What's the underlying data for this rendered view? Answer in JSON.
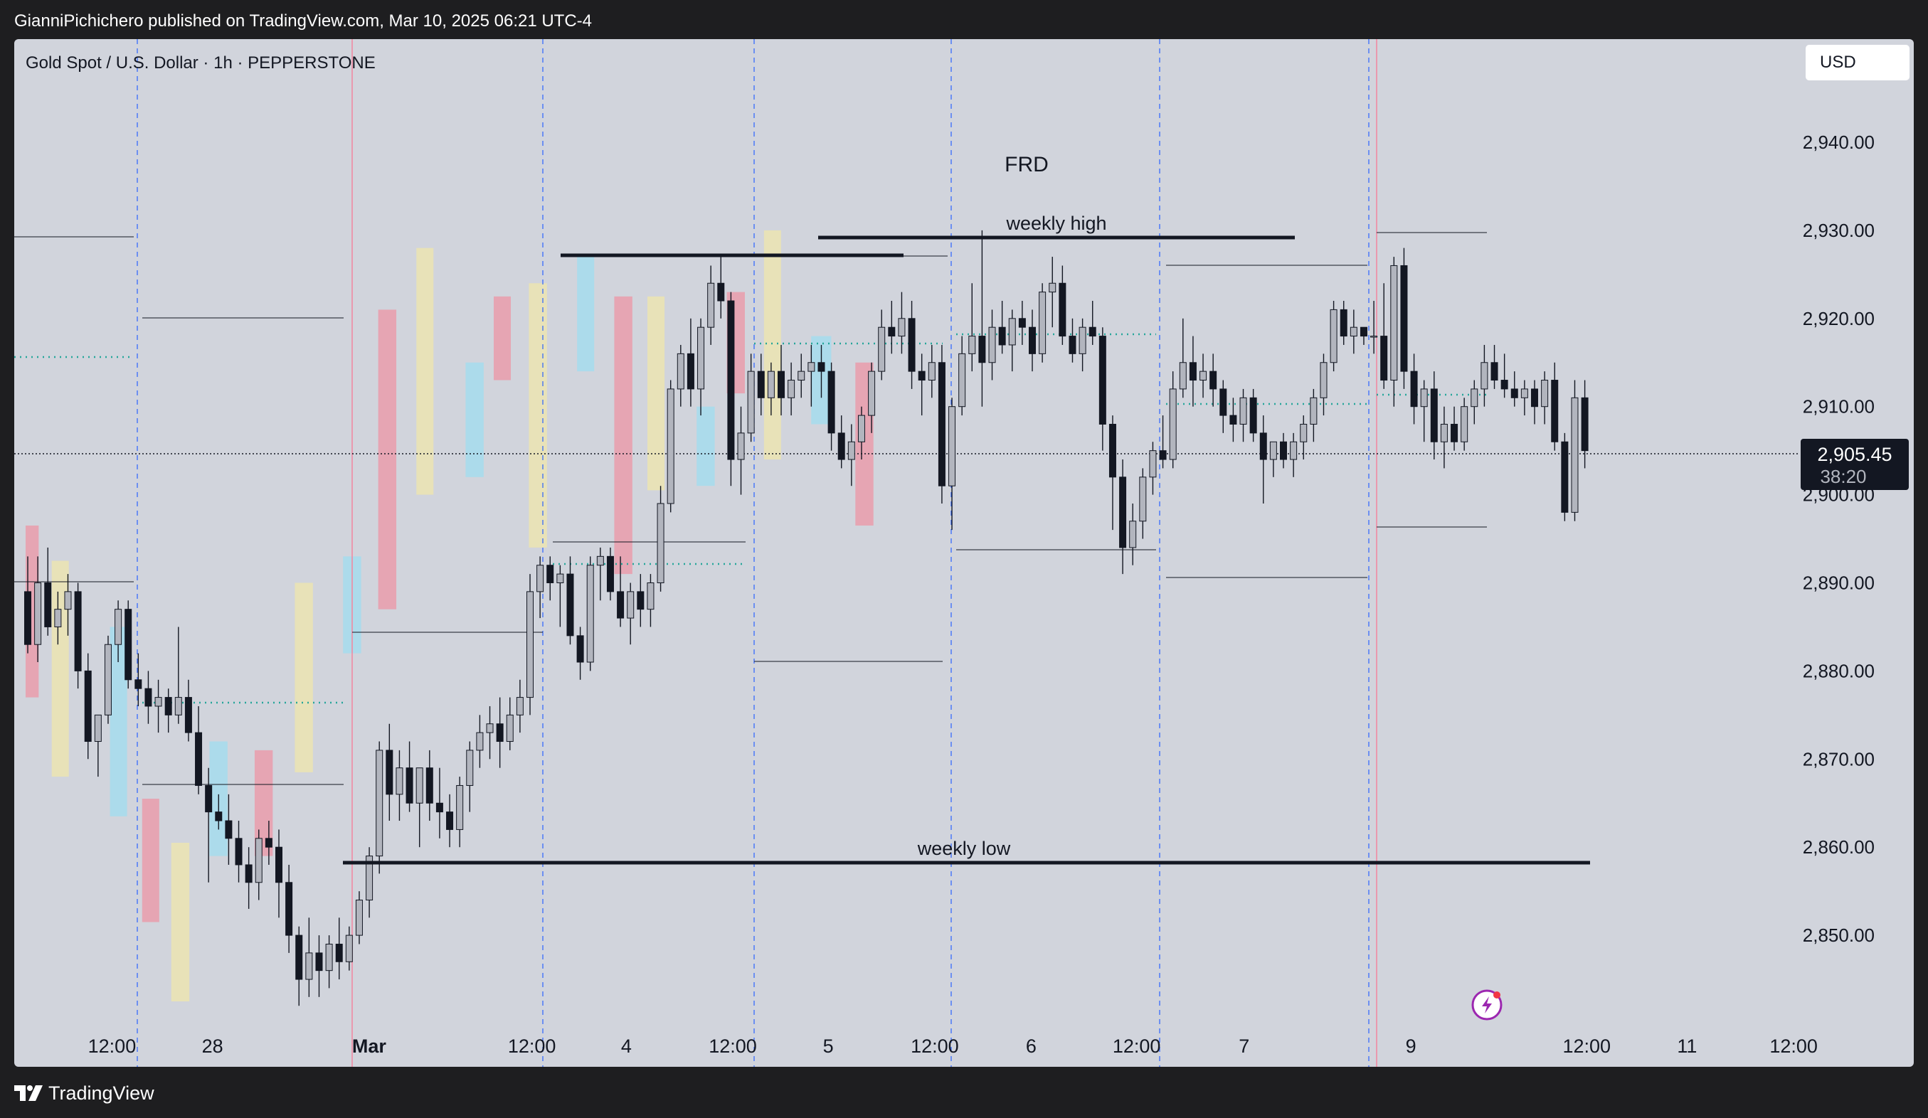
{
  "header": {
    "publish_text": "GianniPichichero published on TradingView.com, Mar 10, 2025 06:21 UTC-4"
  },
  "chart_header": {
    "symbol_title": "Gold Spot / U.S. Dollar · 1h · PEPPERSTONE",
    "currency_button": "USD"
  },
  "price_tag": {
    "price": "2,905.45",
    "countdown": "38:20"
  },
  "annotations": {
    "frd": "FRD",
    "weekly_high": "weekly high",
    "weekly_low": "weekly low"
  },
  "footer": {
    "brand": "TradingView"
  },
  "colors": {
    "chart_bg": "#d1d4dc",
    "candle_up": "#b2b5be",
    "candle_down": "#131722",
    "session_pink": "#e8a0ae",
    "session_cream": "#eae3b4",
    "session_blue": "#a7dcec",
    "day_separator": "#2962ff",
    "week_separator": "#f08aa2",
    "mid_dots": "#26a69a",
    "level_line": "#131722"
  },
  "chart_data": {
    "type": "candlestick",
    "title": "Gold Spot / U.S. Dollar · 1h · PEPPERSTONE",
    "ylim": [
      2842.5,
      2945.0
    ],
    "y_ticks": [
      2940,
      2930,
      2920,
      2910,
      2900,
      2890,
      2880,
      2870,
      2860,
      2850
    ],
    "y_tick_labels": [
      "2,940.00",
      "2,930.00",
      "2,920.00",
      "2,910.00",
      "2,900.00",
      "2,890.00",
      "2,880.00",
      "2,870.00",
      "2,860.00",
      "2,850.00"
    ],
    "x_range": [
      0,
      157
    ],
    "x_ticks": [
      {
        "i": 8.6,
        "label": "12:00",
        "bold": false
      },
      {
        "i": 18.6,
        "label": "28",
        "bold": false
      },
      {
        "i": 34.2,
        "label": "Mar",
        "bold": true
      },
      {
        "i": 50.4,
        "label": "12:00",
        "bold": false
      },
      {
        "i": 59.8,
        "label": "4",
        "bold": false
      },
      {
        "i": 70.4,
        "label": "12:00",
        "bold": false
      },
      {
        "i": 79.9,
        "label": "5",
        "bold": false
      },
      {
        "i": 90.5,
        "label": "12:00",
        "bold": false
      },
      {
        "i": 100.1,
        "label": "6",
        "bold": false
      },
      {
        "i": 110.6,
        "label": "12:00",
        "bold": false
      },
      {
        "i": 121.3,
        "label": "7",
        "bold": false
      },
      {
        "i": 137.9,
        "label": "9",
        "bold": false
      },
      {
        "i": 155.4,
        "label": "12:00",
        "bold": false
      },
      {
        "i": 165.4,
        "label": "11",
        "bold": false
      },
      {
        "i": 176.0,
        "label": "12:00",
        "bold": false
      }
    ],
    "last_price": 2905.45,
    "candles": [
      [
        2889,
        2893,
        2882,
        2883
      ],
      [
        2883,
        2893,
        2881,
        2890
      ],
      [
        2890,
        2894,
        2884,
        2885
      ],
      [
        2885,
        2889,
        2883,
        2887
      ],
      [
        2887,
        2891,
        2884,
        2889
      ],
      [
        2889,
        2890,
        2878,
        2880
      ],
      [
        2880,
        2882,
        2870,
        2872
      ],
      [
        2872,
        2875,
        2868,
        2875
      ],
      [
        2875,
        2884,
        2874,
        2883
      ],
      [
        2883,
        2888,
        2881,
        2887
      ],
      [
        2887,
        2888,
        2878,
        2879
      ],
      [
        2879,
        2882,
        2876,
        2878
      ],
      [
        2878,
        2880,
        2874,
        2876
      ],
      [
        2876,
        2879,
        2873,
        2877
      ],
      [
        2877,
        2878,
        2873,
        2875
      ],
      [
        2875,
        2885,
        2874,
        2877
      ],
      [
        2877,
        2879,
        2872,
        2873
      ],
      [
        2873,
        2876,
        2866,
        2867
      ],
      [
        2867,
        2869,
        2856,
        2864
      ],
      [
        2864,
        2866,
        2862,
        2863
      ],
      [
        2863,
        2866,
        2858,
        2861
      ],
      [
        2861,
        2863,
        2856,
        2858
      ],
      [
        2858,
        2860,
        2853,
        2856
      ],
      [
        2856,
        2862,
        2854,
        2861
      ],
      [
        2861,
        2863,
        2858,
        2860
      ],
      [
        2860,
        2862,
        2852,
        2856
      ],
      [
        2856,
        2858,
        2848,
        2850
      ],
      [
        2850,
        2851,
        2842,
        2845
      ],
      [
        2845,
        2852,
        2843,
        2848
      ],
      [
        2848,
        2850,
        2843,
        2846
      ],
      [
        2846,
        2850,
        2844,
        2849
      ],
      [
        2849,
        2852,
        2845,
        2847
      ],
      [
        2847,
        2851,
        2846,
        2850
      ],
      [
        2850,
        2855,
        2849,
        2854
      ],
      [
        2854,
        2860,
        2852,
        2859
      ],
      [
        2859,
        2872,
        2857,
        2871
      ],
      [
        2871,
        2874,
        2863,
        2866
      ],
      [
        2866,
        2871,
        2863,
        2869
      ],
      [
        2869,
        2872,
        2864,
        2865
      ],
      [
        2865,
        2869,
        2860,
        2869
      ],
      [
        2869,
        2871,
        2863,
        2865
      ],
      [
        2865,
        2869,
        2861,
        2864
      ],
      [
        2864,
        2866,
        2860,
        2862
      ],
      [
        2862,
        2868,
        2860,
        2867
      ],
      [
        2867,
        2872,
        2864,
        2871
      ],
      [
        2871,
        2875,
        2869,
        2873
      ],
      [
        2873,
        2876,
        2870,
        2874
      ],
      [
        2874,
        2877,
        2869,
        2872
      ],
      [
        2872,
        2877,
        2871,
        2875
      ],
      [
        2875,
        2879,
        2873,
        2877
      ],
      [
        2877,
        2891,
        2875,
        2889
      ],
      [
        2889,
        2893,
        2886,
        2892
      ],
      [
        2892,
        2893,
        2888,
        2890
      ],
      [
        2890,
        2892,
        2885,
        2891
      ],
      [
        2891,
        2893,
        2883,
        2884
      ],
      [
        2884,
        2885,
        2879,
        2881
      ],
      [
        2881,
        2893,
        2880,
        2892
      ],
      [
        2892,
        2894,
        2888,
        2893
      ],
      [
        2893,
        2894,
        2888,
        2889
      ],
      [
        2889,
        2893,
        2885,
        2886
      ],
      [
        2886,
        2890,
        2883,
        2889
      ],
      [
        2889,
        2891,
        2885,
        2887
      ],
      [
        2887,
        2891,
        2885,
        2890
      ],
      [
        2890,
        2901,
        2889,
        2899
      ],
      [
        2899,
        2913,
        2898,
        2912
      ],
      [
        2912,
        2917,
        2910,
        2916
      ],
      [
        2916,
        2920,
        2910,
        2912
      ],
      [
        2912,
        2920,
        2909,
        2919
      ],
      [
        2919,
        2926,
        2917,
        2924
      ],
      [
        2924,
        2927,
        2920,
        2922
      ],
      [
        2922,
        2923,
        2901,
        2904
      ],
      [
        2904,
        2910,
        2900,
        2907
      ],
      [
        2907,
        2916,
        2906,
        2914
      ],
      [
        2914,
        2916,
        2909,
        2911
      ],
      [
        2911,
        2915,
        2909,
        2914
      ],
      [
        2914,
        2917,
        2909,
        2911
      ],
      [
        2911,
        2915,
        2909,
        2913
      ],
      [
        2913,
        2916,
        2911,
        2914
      ],
      [
        2914,
        2917,
        2910,
        2915
      ],
      [
        2915,
        2917,
        2911,
        2914
      ],
      [
        2914,
        2915,
        2905,
        2907
      ],
      [
        2907,
        2909,
        2903,
        2904
      ],
      [
        2904,
        2908,
        2901,
        2906
      ],
      [
        2906,
        2910,
        2904,
        2909
      ],
      [
        2909,
        2915,
        2907,
        2914
      ],
      [
        2914,
        2921,
        2913,
        2919
      ],
      [
        2919,
        2922,
        2916,
        2918
      ],
      [
        2918,
        2923,
        2916,
        2920
      ],
      [
        2920,
        2922,
        2912,
        2914
      ],
      [
        2914,
        2916,
        2909,
        2913
      ],
      [
        2913,
        2917,
        2911,
        2915
      ],
      [
        2915,
        2917,
        2899,
        2901
      ],
      [
        2901,
        2911,
        2896,
        2910
      ],
      [
        2910,
        2918,
        2909,
        2916
      ],
      [
        2916,
        2924,
        2914,
        2918
      ],
      [
        2918,
        2930,
        2910,
        2915
      ],
      [
        2915,
        2921,
        2913,
        2919
      ],
      [
        2919,
        2922,
        2916,
        2917
      ],
      [
        2917,
        2921,
        2914,
        2920
      ],
      [
        2920,
        2922,
        2917,
        2919
      ],
      [
        2919,
        2921,
        2914,
        2916
      ],
      [
        2916,
        2924,
        2915,
        2923
      ],
      [
        2923,
        2927,
        2919,
        2924
      ],
      [
        2924,
        2926,
        2917,
        2918
      ],
      [
        2918,
        2920,
        2915,
        2916
      ],
      [
        2916,
        2920,
        2914,
        2919
      ],
      [
        2919,
        2922,
        2917,
        2918
      ],
      [
        2918,
        2919,
        2905,
        2908
      ],
      [
        2908,
        2909,
        2896,
        2902
      ],
      [
        2902,
        2904,
        2891,
        2894
      ],
      [
        2894,
        2899,
        2892,
        2897
      ],
      [
        2897,
        2903,
        2895,
        2902
      ],
      [
        2902,
        2906,
        2900,
        2905
      ],
      [
        2905,
        2909,
        2903,
        2904
      ],
      [
        2904,
        2914,
        2903,
        2912
      ],
      [
        2912,
        2920,
        2911,
        2915
      ],
      [
        2915,
        2918,
        2910,
        2913
      ],
      [
        2913,
        2916,
        2911,
        2914
      ],
      [
        2914,
        2916,
        2910,
        2912
      ],
      [
        2912,
        2913,
        2907,
        2909
      ],
      [
        2909,
        2911,
        2906,
        2908
      ],
      [
        2908,
        2912,
        2906,
        2911
      ],
      [
        2911,
        2912,
        2906,
        2907
      ],
      [
        2907,
        2909,
        2899,
        2904
      ],
      [
        2904,
        2906,
        2902,
        2906
      ],
      [
        2906,
        2907,
        2903,
        2904
      ],
      [
        2904,
        2907,
        2902,
        2906
      ],
      [
        2906,
        2909,
        2904,
        2908
      ],
      [
        2908,
        2912,
        2906,
        2911
      ],
      [
        2911,
        2916,
        2909,
        2915
      ],
      [
        2915,
        2922,
        2914,
        2921
      ],
      [
        2921,
        2922,
        2917,
        2918
      ],
      [
        2918,
        2921,
        2916,
        2919
      ],
      [
        2919,
        2919,
        2917,
        2918
      ],
      [
        2918,
        2922,
        2916,
        2918
      ],
      [
        2918,
        2924,
        2912,
        2913
      ],
      [
        2913,
        2927,
        2910,
        2926
      ],
      [
        2926,
        2928,
        2912,
        2914
      ],
      [
        2914,
        2916,
        2908,
        2910
      ],
      [
        2910,
        2913,
        2906,
        2912
      ],
      [
        2912,
        2914,
        2904,
        2906
      ],
      [
        2906,
        2910,
        2903,
        2908
      ],
      [
        2908,
        2910,
        2905,
        2906
      ],
      [
        2906,
        2911,
        2905,
        2910
      ],
      [
        2910,
        2913,
        2908,
        2912
      ],
      [
        2912,
        2917,
        2910,
        2915
      ],
      [
        2915,
        2917,
        2912,
        2913
      ],
      [
        2913,
        2916,
        2911,
        2912
      ],
      [
        2912,
        2914,
        2910,
        2911
      ],
      [
        2911,
        2913,
        2909,
        2912
      ],
      [
        2912,
        2913,
        2908,
        2910
      ],
      [
        2910,
        2914,
        2908,
        2913
      ],
      [
        2913,
        2915,
        2905,
        2906
      ],
      [
        2906,
        2907,
        2897,
        2898
      ],
      [
        2898,
        2913,
        2897,
        2911
      ],
      [
        2911,
        2913,
        2903,
        2905
      ]
    ]
  }
}
